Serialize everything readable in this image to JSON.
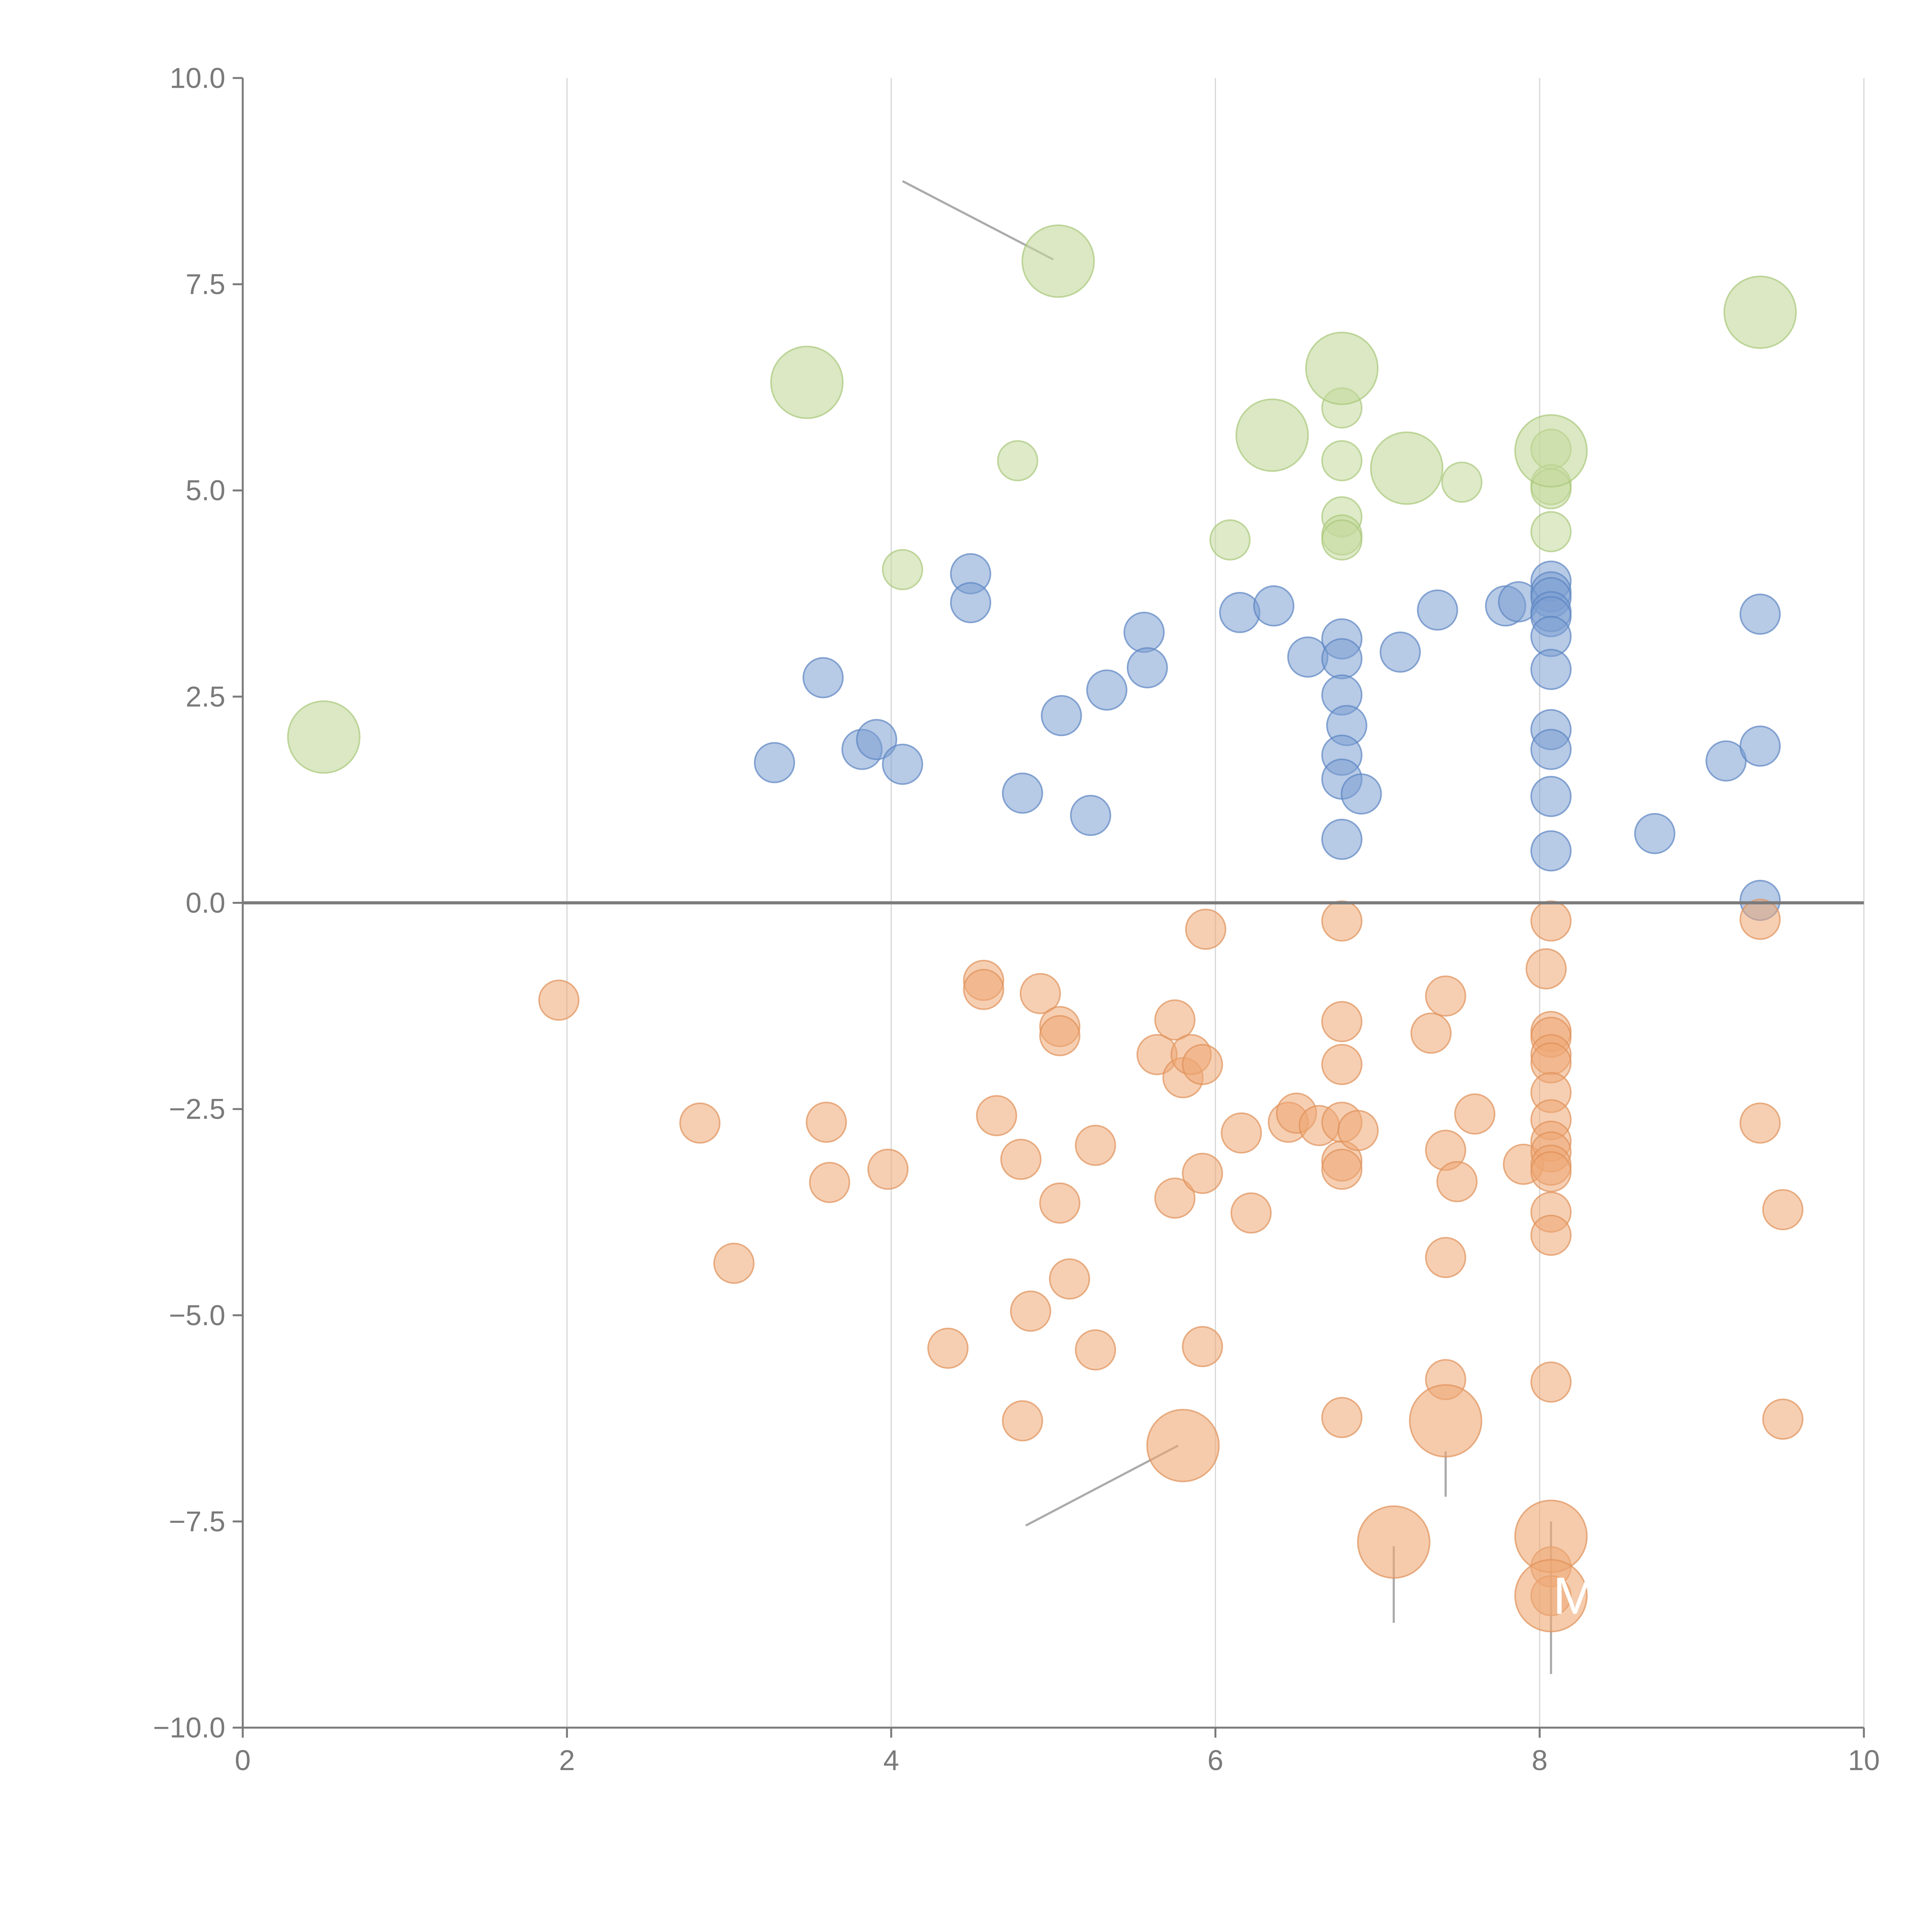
{
  "chart_data": {
    "type": "scatter",
    "title": "",
    "xlabel": "",
    "ylabel": "",
    "xlim": [
      0,
      10
    ],
    "ylim": [
      -10,
      10
    ],
    "x_ticks": [
      0,
      2,
      4,
      6,
      8,
      10
    ],
    "x_tick_labels": [
      "0",
      "2",
      "4",
      "6",
      "8",
      "10"
    ],
    "y_ticks": [
      10,
      7.5,
      5,
      2.5,
      0,
      -2.5,
      -5,
      -7.5,
      -10
    ],
    "y_tick_labels": [
      "10.0",
      "7.5",
      "5.0",
      "2.5",
      "0.0",
      "−2.5",
      "−5.0",
      "−7.5",
      "−10.0"
    ],
    "grid": "vertical",
    "zero_line": true,
    "series": [
      {
        "name": "blue",
        "color": "#7b9fd1",
        "stroke": "#5b85c2",
        "points": [
          [
            3.28,
            1.7
          ],
          [
            3.58,
            2.73
          ],
          [
            3.82,
            1.86
          ],
          [
            3.91,
            1.98
          ],
          [
            4.07,
            1.68
          ],
          [
            4.49,
            3.99
          ],
          [
            4.49,
            3.64
          ],
          [
            4.81,
            1.33
          ],
          [
            5.05,
            2.27
          ],
          [
            5.23,
            1.06
          ],
          [
            5.33,
            2.58
          ],
          [
            5.56,
            3.28
          ],
          [
            5.58,
            2.85
          ],
          [
            6.15,
            3.52
          ],
          [
            6.36,
            3.6
          ],
          [
            6.57,
            2.98
          ],
          [
            6.78,
            3.2
          ],
          [
            6.78,
            2.96
          ],
          [
            6.78,
            2.52
          ],
          [
            6.81,
            2.15
          ],
          [
            6.78,
            1.79
          ],
          [
            6.78,
            1.5
          ],
          [
            6.9,
            1.32
          ],
          [
            6.78,
            0.77
          ],
          [
            7.14,
            3.04
          ],
          [
            7.37,
            3.55
          ],
          [
            7.79,
            3.6
          ],
          [
            7.87,
            3.65
          ],
          [
            8.07,
            3.9
          ],
          [
            8.07,
            3.77
          ],
          [
            8.07,
            3.7
          ],
          [
            8.07,
            3.53
          ],
          [
            8.07,
            3.47
          ],
          [
            8.07,
            3.23
          ],
          [
            8.07,
            2.83
          ],
          [
            8.07,
            2.1
          ],
          [
            8.07,
            1.86
          ],
          [
            8.07,
            1.29
          ],
          [
            8.07,
            0.63
          ],
          [
            8.71,
            0.84
          ],
          [
            9.15,
            1.72
          ],
          [
            9.36,
            3.5
          ],
          [
            9.36,
            1.9
          ],
          [
            9.36,
            0.03
          ]
        ]
      },
      {
        "name": "orange",
        "color": "#eea874",
        "stroke": "#e0925a",
        "points": [
          [
            1.95,
            -1.18
          ],
          [
            2.82,
            -2.67
          ],
          [
            3.03,
            -4.37
          ],
          [
            3.6,
            -2.66
          ],
          [
            3.62,
            -3.39
          ],
          [
            3.98,
            -3.23
          ],
          [
            4.35,
            -5.4
          ],
          [
            4.57,
            -0.94
          ],
          [
            4.57,
            -1.05
          ],
          [
            4.65,
            -2.58
          ],
          [
            4.8,
            -3.11
          ],
          [
            4.81,
            -6.28
          ],
          [
            4.86,
            -4.95
          ],
          [
            4.92,
            -1.1
          ],
          [
            5.04,
            -1.5
          ],
          [
            5.04,
            -1.61
          ],
          [
            5.04,
            -3.64
          ],
          [
            5.1,
            -4.56
          ],
          [
            5.26,
            -2.94
          ],
          [
            5.26,
            -5.42
          ],
          [
            5.64,
            -1.84
          ],
          [
            5.75,
            -1.42
          ],
          [
            5.75,
            -3.58
          ],
          [
            5.8,
            -2.12
          ],
          [
            5.85,
            -1.84
          ],
          [
            5.92,
            -1.96
          ],
          [
            5.92,
            -3.28
          ],
          [
            5.92,
            -5.38
          ],
          [
            5.94,
            -0.32
          ],
          [
            6.16,
            -2.79
          ],
          [
            6.22,
            -3.76
          ],
          [
            6.45,
            -2.66
          ],
          [
            6.5,
            -2.55
          ],
          [
            6.64,
            -2.7
          ],
          [
            6.78,
            -0.22
          ],
          [
            6.78,
            -1.44
          ],
          [
            6.78,
            -1.96
          ],
          [
            6.78,
            -2.66
          ],
          [
            6.78,
            -3.13
          ],
          [
            6.78,
            -3.23
          ],
          [
            6.78,
            -6.24
          ],
          [
            6.88,
            -2.76
          ],
          [
            7.33,
            -1.58
          ],
          [
            7.42,
            -1.13
          ],
          [
            7.42,
            -3.0
          ],
          [
            7.42,
            -4.3
          ],
          [
            7.42,
            -5.78
          ],
          [
            7.49,
            -3.38
          ],
          [
            7.6,
            -2.56
          ],
          [
            7.9,
            -3.17
          ],
          [
            8.04,
            -0.8
          ],
          [
            8.07,
            -0.22
          ],
          [
            8.07,
            -1.56
          ],
          [
            8.07,
            -1.63
          ],
          [
            8.07,
            -1.84
          ],
          [
            8.07,
            -1.94
          ],
          [
            8.07,
            -2.3
          ],
          [
            8.07,
            -2.63
          ],
          [
            8.07,
            -2.89
          ],
          [
            8.07,
            -3.02
          ],
          [
            8.07,
            -3.18
          ],
          [
            8.07,
            -3.26
          ],
          [
            8.07,
            -3.75
          ],
          [
            8.07,
            -4.03
          ],
          [
            8.07,
            -5.81
          ],
          [
            8.07,
            -8.05
          ],
          [
            8.07,
            -8.4
          ],
          [
            9.36,
            -0.2
          ],
          [
            9.36,
            -2.67
          ],
          [
            9.5,
            -3.72
          ],
          [
            9.5,
            -6.26
          ]
        ]
      },
      {
        "name": "green",
        "color": "#c3d99b",
        "stroke": "#a9c77a",
        "points": [
          [
            4.07,
            4.04
          ],
          [
            4.78,
            5.36
          ],
          [
            6.09,
            4.4
          ],
          [
            6.78,
            6.0
          ],
          [
            6.78,
            5.36
          ],
          [
            6.78,
            4.68
          ],
          [
            6.78,
            4.46
          ],
          [
            6.78,
            4.4
          ],
          [
            7.52,
            5.1
          ],
          [
            8.07,
            5.5
          ],
          [
            8.07,
            5.07
          ],
          [
            8.07,
            5.02
          ],
          [
            8.07,
            4.5
          ]
        ]
      }
    ],
    "bubbles": [
      {
        "x": 0.5,
        "y": 2.01,
        "color": "#c3d99b",
        "stroke": "#a9c77a"
      },
      {
        "x": 3.48,
        "y": 6.31,
        "color": "#c3d99b",
        "stroke": "#a9c77a"
      },
      {
        "x": 5.03,
        "y": 7.78,
        "color": "#c3d99b",
        "stroke": "#a9c77a"
      },
      {
        "x": 6.35,
        "y": 5.67,
        "color": "#c3d99b",
        "stroke": "#a9c77a"
      },
      {
        "x": 6.78,
        "y": 6.48,
        "color": "#c3d99b",
        "stroke": "#a9c77a"
      },
      {
        "x": 7.18,
        "y": 5.27,
        "color": "#c3d99b",
        "stroke": "#a9c77a"
      },
      {
        "x": 8.07,
        "y": 5.48,
        "color": "#c3d99b",
        "stroke": "#a9c77a"
      },
      {
        "x": 9.36,
        "y": 7.16,
        "color": "#c3d99b",
        "stroke": "#a9c77a"
      },
      {
        "x": 5.8,
        "y": -6.58,
        "color": "#eea874",
        "stroke": "#e0925a"
      },
      {
        "x": 7.42,
        "y": -6.28,
        "color": "#eea874",
        "stroke": "#e0925a"
      },
      {
        "x": 7.1,
        "y": -7.75,
        "color": "#eea874",
        "stroke": "#e0925a"
      },
      {
        "x": 8.07,
        "y": -7.68,
        "color": "#eea874",
        "stroke": "#e0925a"
      },
      {
        "x": 8.07,
        "y": -8.4,
        "color": "#eea874",
        "stroke": "#e0925a"
      }
    ],
    "leader_lines": [
      {
        "from": [
          4.07,
          8.75
        ],
        "to": [
          5.0,
          7.8
        ],
        "color": "#aaaaaa"
      },
      {
        "from": [
          5.77,
          -6.58
        ],
        "to": [
          4.83,
          -7.55
        ],
        "color": "#aaaaaa"
      },
      {
        "from": [
          7.42,
          -6.65
        ],
        "to": [
          7.42,
          -7.2
        ],
        "color": "#aaaaaa"
      },
      {
        "from": [
          7.1,
          -7.8
        ],
        "to": [
          7.1,
          -8.73
        ],
        "color": "#aaaaaa"
      },
      {
        "from": [
          8.07,
          -7.5
        ],
        "to": [
          8.07,
          -9.35
        ],
        "color": "#aaaaaa"
      },
      {
        "from": [
          6.82,
          6.55
        ],
        "to": [
          6.97,
          6.82
        ],
        "color": "#ffffff"
      },
      {
        "from": [
          6.23,
          5.9
        ],
        "to": [
          6.33,
          5.75
        ],
        "color": "#ffffff"
      },
      {
        "from": [
          7.22,
          5.23
        ],
        "to": [
          7.62,
          5.1
        ],
        "color": "#ffffff"
      },
      {
        "from": [
          9.3,
          7.52
        ],
        "to": [
          9.36,
          7.21
        ],
        "color": "#ffffff"
      }
    ],
    "annotations": [
      {
        "text": "M",
        "x": 8.07,
        "y": -8.4,
        "color": "#ffffff"
      }
    ],
    "colors": {
      "axis": "#7a7a7a",
      "zero_line": "#7a7a7a",
      "grid": "#d9d9d9",
      "blue": "#7b9fd1",
      "orange": "#eea874",
      "green": "#c3d99b"
    }
  }
}
